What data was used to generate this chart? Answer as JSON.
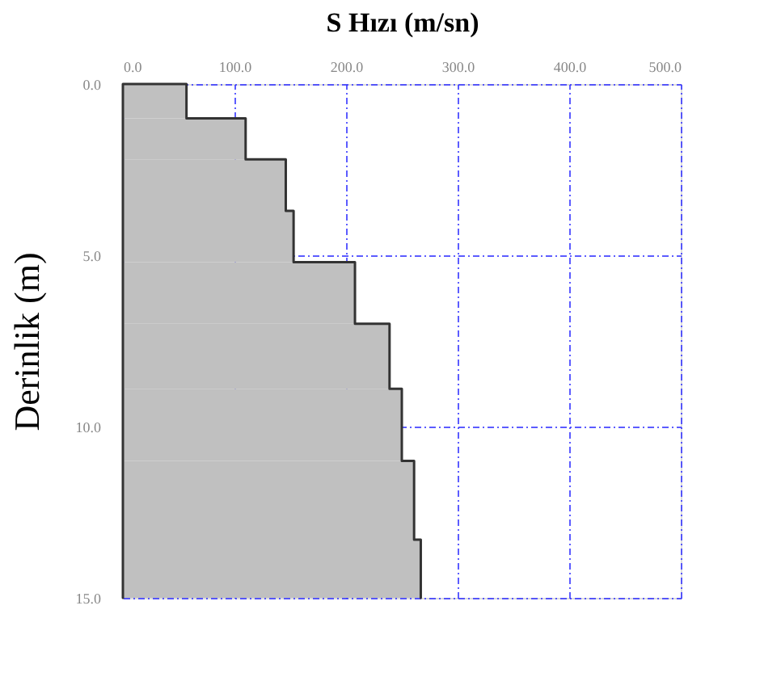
{
  "chart_data": {
    "type": "area",
    "orientation": "horizontal",
    "xlabel": "S Hızı (m/sn)",
    "ylabel": "Derinlik (m)",
    "x": [
      0,
      1.0,
      2.2,
      3.7,
      5.2,
      7.0,
      8.9,
      11.0,
      13.3,
      15
    ],
    "series": [
      {
        "color": "#c0c0c0",
        "values": [
          57,
          110,
          146,
          153,
          208,
          239,
          250,
          261,
          267,
          267
        ]
      }
    ],
    "xlim": [
      0,
      500
    ],
    "xticks": [
      {
        "value": 0,
        "label": "0.0"
      },
      {
        "value": 100,
        "label": "100.0"
      },
      {
        "value": 200,
        "label": "200.0"
      },
      {
        "value": 300,
        "label": "300.0"
      },
      {
        "value": 400,
        "label": "400.0"
      },
      {
        "value": 500,
        "label": "500.0"
      }
    ],
    "ylim": [
      15,
      0
    ],
    "yticks": [
      {
        "value": 0,
        "label": "0.0"
      },
      {
        "value": 5,
        "label": "5.0"
      },
      {
        "value": 10,
        "label": "10.0"
      },
      {
        "value": 15,
        "label": "15.0"
      }
    ],
    "grid": true
  }
}
